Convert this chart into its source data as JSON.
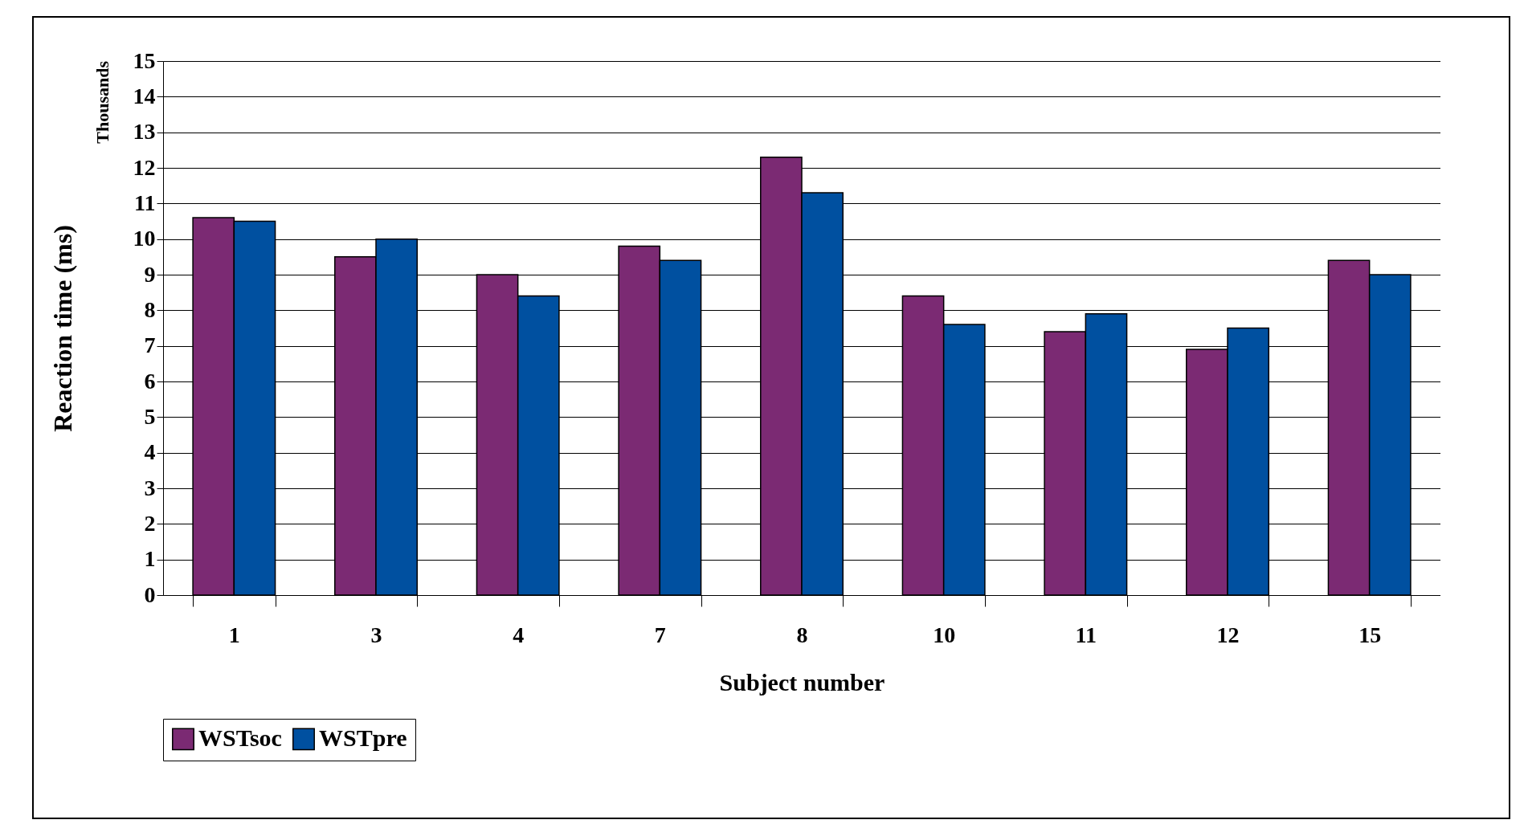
{
  "chart_data": {
    "type": "bar",
    "xlabel": "Subject number",
    "ylabel": "Reaction time (ms)",
    "annotations": [
      "Thousands"
    ],
    "categories": [
      "1",
      "3",
      "4",
      "7",
      "8",
      "10",
      "11",
      "12",
      "15"
    ],
    "series": [
      {
        "name": "WSTsoc",
        "color": "#7b2a73",
        "values": [
          10.6,
          9.5,
          9.0,
          9.8,
          12.3,
          8.4,
          7.4,
          6.9,
          9.4
        ]
      },
      {
        "name": "WSTpre",
        "color": "#0050a0",
        "values": [
          10.5,
          10.0,
          8.4,
          9.4,
          11.3,
          7.6,
          7.9,
          7.5,
          9.0
        ]
      }
    ],
    "ylim": [
      0,
      15
    ],
    "yticks": [
      0,
      1,
      2,
      3,
      4,
      5,
      6,
      7,
      8,
      9,
      10,
      11,
      12,
      13,
      14,
      15
    ],
    "grid": "y",
    "legend": "bottom"
  }
}
